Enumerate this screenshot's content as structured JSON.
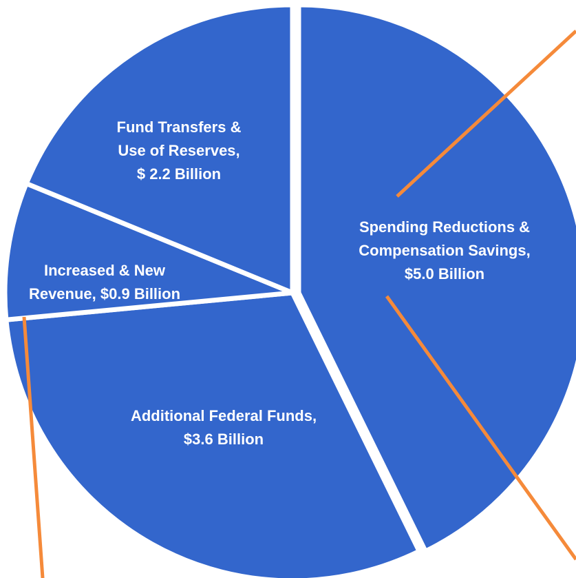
{
  "chart_data": {
    "type": "pie",
    "labels": [
      [
        "Spending Reductions &",
        "Compensation Savings,",
        "$5.0  Billion"
      ],
      [
        "Additional Federal Funds,",
        "$3.6  Billion"
      ],
      [
        "Increased & New",
        "Revenue,  $0.9 Billion"
      ],
      [
        "Fund Transfers &",
        "Use of Reserves,",
        "$ 2.2  Billion"
      ]
    ],
    "values": [
      5.0,
      3.6,
      0.9,
      2.2
    ],
    "color": "#3366cc"
  }
}
